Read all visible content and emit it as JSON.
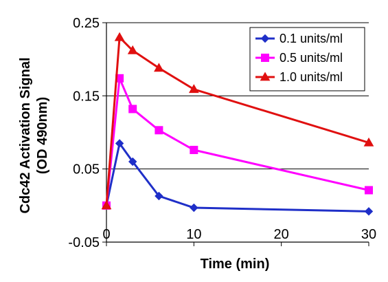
{
  "chart_data": {
    "type": "line",
    "xlabel": "Time (min)",
    "ylabel_line1": "Cdc42 Activation Signal",
    "ylabel_line2": "(OD 490nm)",
    "xlim": [
      0,
      30
    ],
    "ylim": [
      -0.05,
      0.25
    ],
    "x_ticks": [
      0,
      10,
      20,
      30
    ],
    "x_tick_labels": [
      "0",
      "10",
      "20",
      "30"
    ],
    "y_ticks": [
      -0.05,
      0.05,
      0.15,
      0.25
    ],
    "y_tick_labels": [
      "-0.05",
      "0.05",
      "0.15",
      "0.25"
    ],
    "grid": "horizontal",
    "legend_position": "top-right",
    "series": [
      {
        "name": "0.1 units/ml",
        "color": "#1F2FC8",
        "marker": "diamond",
        "x": [
          0,
          1.5,
          3,
          6,
          10,
          30
        ],
        "y": [
          0.0,
          0.085,
          0.06,
          0.013,
          -0.003,
          -0.008
        ]
      },
      {
        "name": "0.5 units/ml",
        "color": "#FF00FF",
        "marker": "square",
        "x": [
          0,
          1.5,
          3,
          6,
          10,
          30
        ],
        "y": [
          0.0,
          0.174,
          0.132,
          0.103,
          0.076,
          0.021
        ]
      },
      {
        "name": "1.0 units/ml",
        "color": "#E01010",
        "marker": "triangle",
        "x": [
          0,
          1.5,
          3,
          6,
          10,
          30
        ],
        "y": [
          0.0,
          0.23,
          0.212,
          0.188,
          0.159,
          0.086
        ]
      }
    ]
  }
}
